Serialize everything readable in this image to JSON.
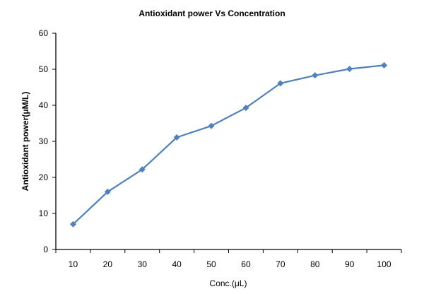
{
  "chart_data": {
    "type": "line",
    "title": "Antioxidant power Vs Concentration",
    "xlabel": "Conc.(μL)",
    "ylabel": "Antioxidant power(μM/L)",
    "x": [
      10,
      20,
      30,
      40,
      50,
      60,
      70,
      80,
      90,
      100
    ],
    "series": [
      {
        "values": [
          7,
          16,
          22.2,
          31.1,
          34.3,
          39.3,
          46.1,
          48.3,
          50.1,
          51.1
        ]
      }
    ],
    "ylim": [
      0,
      60
    ],
    "yticks": [
      0,
      10,
      20,
      30,
      40,
      50,
      60
    ],
    "grid": false,
    "legend": "none",
    "colors": {
      "line": "#4F81BD",
      "marker": "#4F81BD",
      "axis": "#000000"
    },
    "marker": "diamond"
  }
}
